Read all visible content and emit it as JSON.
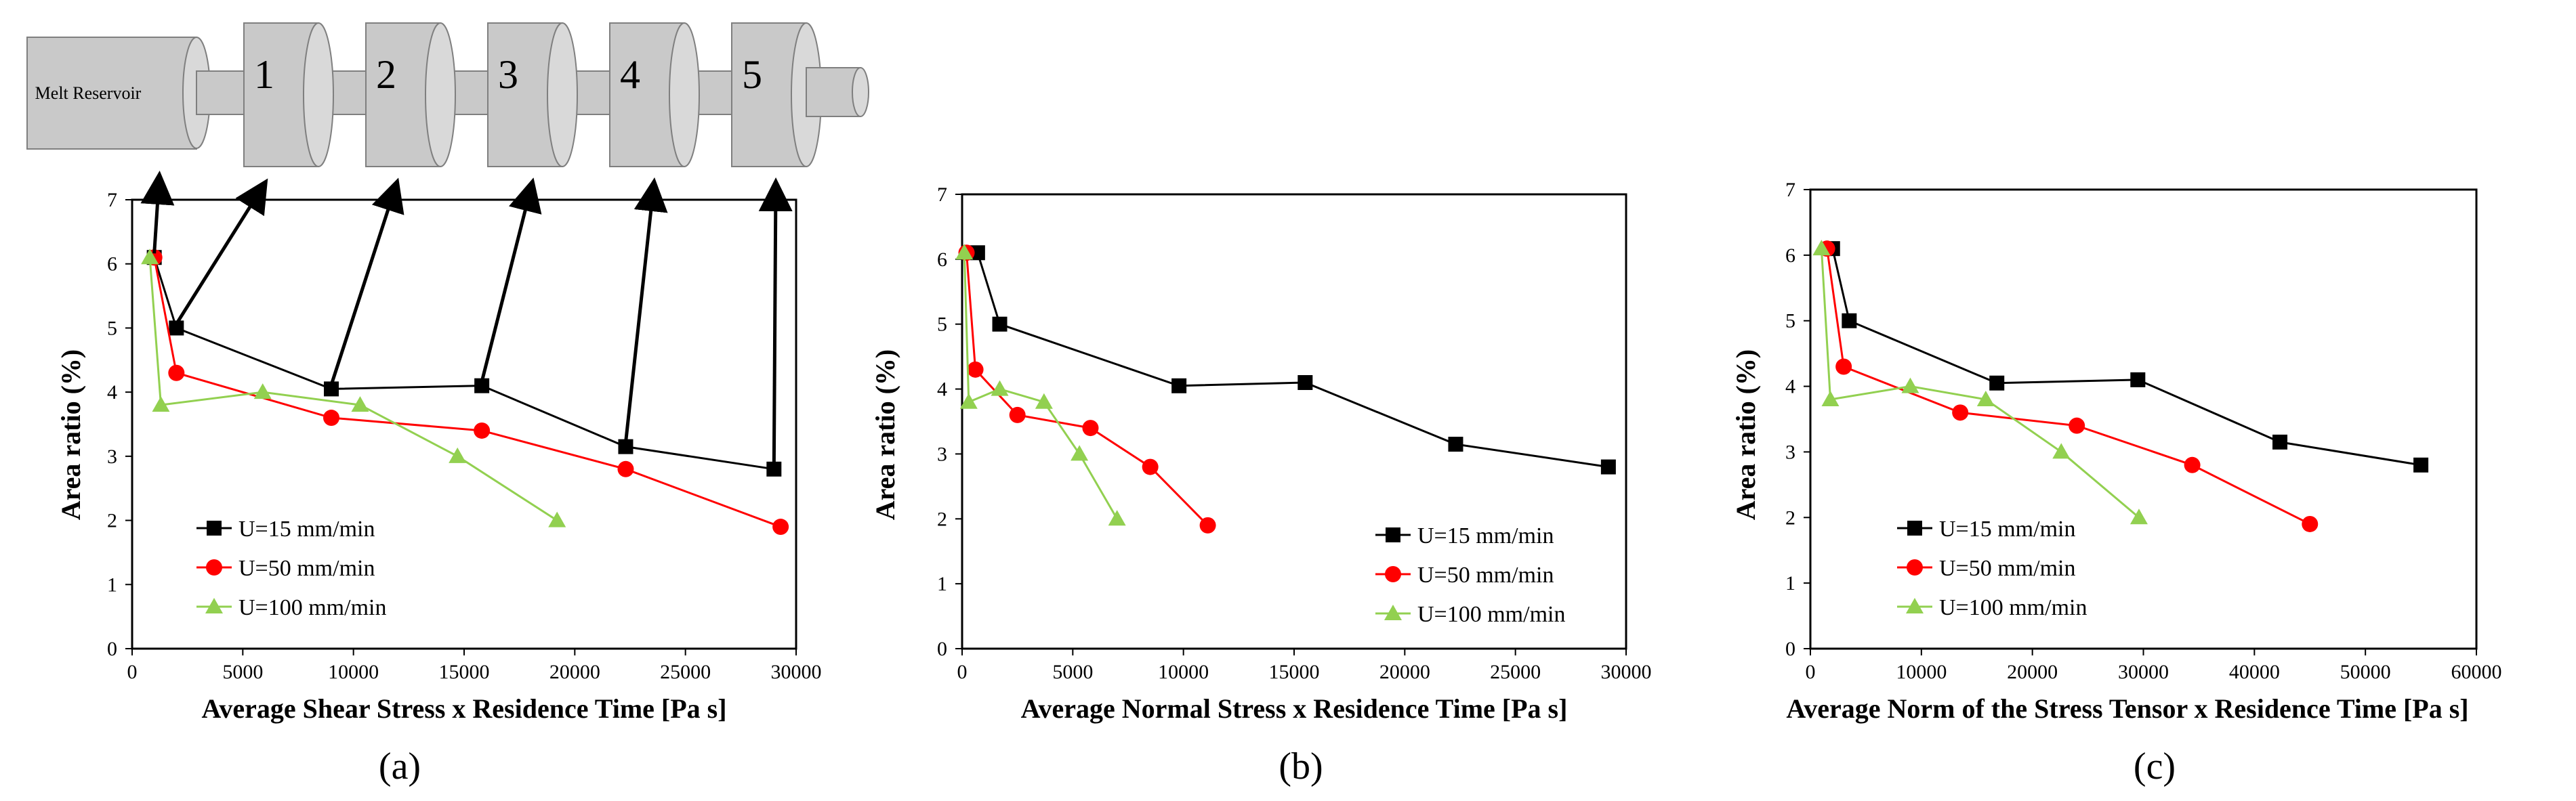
{
  "colors": {
    "series_1": "#000000",
    "series_2": "#ff0000",
    "series_3": "#92d050",
    "cylinder_fill": "#c9c9c9",
    "cylinder_stroke": "#7f7f7f"
  },
  "schematic": {
    "reservoir_label": "Melt Reservoir",
    "stage_labels": [
      "1",
      "2",
      "3",
      "4",
      "5"
    ]
  },
  "chart_data": [
    {
      "type": "line",
      "panel_label": "(a)",
      "xlabel": "Average Shear Stress x Residence Time [Pa s]",
      "ylabel": "Area ratio (%)",
      "xlim": [
        0,
        30000
      ],
      "ylim": [
        0,
        7
      ],
      "xticks": [
        0,
        5000,
        10000,
        15000,
        20000,
        25000,
        30000
      ],
      "yticks": [
        0,
        1,
        2,
        3,
        4,
        5,
        6,
        7
      ],
      "grid": false,
      "legend_position": "bottom-left",
      "series": [
        {
          "name": "U=15 mm/min",
          "marker": "square",
          "x": [
            1000,
            2000,
            9000,
            15800,
            22300,
            29000
          ],
          "y": [
            6.1,
            5.0,
            4.05,
            4.1,
            3.15,
            2.8
          ]
        },
        {
          "name": "U=50 mm/min",
          "marker": "circle",
          "x": [
            1000,
            2000,
            9000,
            15800,
            22300,
            29300
          ],
          "y": [
            6.1,
            4.3,
            3.6,
            3.4,
            2.8,
            1.9
          ]
        },
        {
          "name": "U=100 mm/min",
          "marker": "triangle",
          "x": [
            800,
            1300,
            5900,
            10300,
            14700,
            19200
          ],
          "y": [
            6.1,
            3.8,
            4.0,
            3.8,
            3.0,
            2.0
          ]
        }
      ]
    },
    {
      "type": "line",
      "panel_label": "(b)",
      "xlabel": "Average Normal Stress x Residence Time [Pa s]",
      "ylabel": "Area ratio (%)",
      "xlim": [
        0,
        30000
      ],
      "ylim": [
        0,
        7
      ],
      "xticks": [
        0,
        5000,
        10000,
        15000,
        20000,
        25000,
        30000
      ],
      "yticks": [
        0,
        1,
        2,
        3,
        4,
        5,
        6,
        7
      ],
      "grid": false,
      "legend_position": "bottom-right",
      "series": [
        {
          "name": "U=15 mm/min",
          "marker": "square",
          "x": [
            700,
            1700,
            9800,
            15500,
            22300,
            29200
          ],
          "y": [
            6.1,
            5.0,
            4.05,
            4.1,
            3.15,
            2.8
          ]
        },
        {
          "name": "U=50 mm/min",
          "marker": "circle",
          "x": [
            200,
            600,
            2500,
            5800,
            8500,
            11100
          ],
          "y": [
            6.1,
            4.3,
            3.6,
            3.4,
            2.8,
            1.9
          ]
        },
        {
          "name": "U=100 mm/min",
          "marker": "triangle",
          "x": [
            100,
            300,
            1700,
            3700,
            5300,
            7000
          ],
          "y": [
            6.1,
            3.8,
            4.0,
            3.8,
            3.0,
            2.0
          ]
        }
      ]
    },
    {
      "type": "line",
      "panel_label": "(c)",
      "xlabel": "Average Norm of the Stress Tensor x Residence Time [Pa s]",
      "ylabel": "Area ratio (%)",
      "xlim": [
        0,
        60000
      ],
      "ylim": [
        0,
        7
      ],
      "xticks": [
        0,
        10000,
        20000,
        30000,
        40000,
        50000,
        60000
      ],
      "yticks": [
        0,
        1,
        2,
        3,
        4,
        5,
        6,
        7
      ],
      "grid": false,
      "legend_position": "bottom-left",
      "series": [
        {
          "name": "U=15 mm/min",
          "marker": "square",
          "x": [
            2000,
            3500,
            16800,
            29500,
            42300,
            55000
          ],
          "y": [
            6.1,
            5.0,
            4.05,
            4.1,
            3.15,
            2.8
          ]
        },
        {
          "name": "U=50 mm/min",
          "marker": "circle",
          "x": [
            1500,
            3000,
            13500,
            24000,
            34400,
            45000
          ],
          "y": [
            6.1,
            4.3,
            3.6,
            3.4,
            2.8,
            1.9
          ]
        },
        {
          "name": "U=100 mm/min",
          "marker": "triangle",
          "x": [
            1000,
            1800,
            9000,
            15800,
            22600,
            29600
          ],
          "y": [
            6.1,
            3.8,
            4.0,
            3.8,
            3.0,
            2.0
          ]
        }
      ]
    }
  ]
}
